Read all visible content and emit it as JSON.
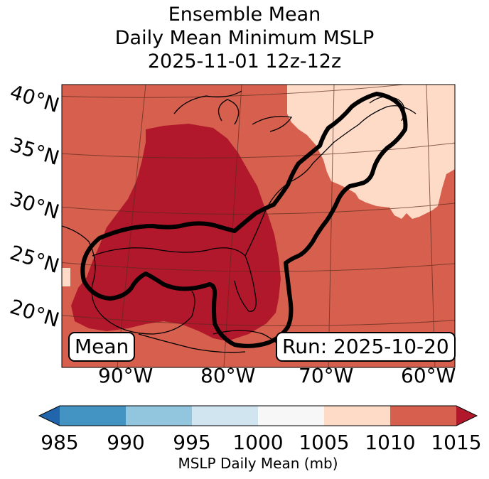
{
  "title": {
    "line1": "Ensemble Mean",
    "line2": "Daily Mean Minimum MSLP",
    "line3": "2025-11-01 12z-12z"
  },
  "map": {
    "lat_labels": [
      "40°N",
      "35°N",
      "30°N",
      "25°N",
      "20°N"
    ],
    "lon_labels": [
      "90°W",
      "80°W",
      "70°W",
      "60°W"
    ],
    "mean_box": "Mean",
    "run_box": "Run: 2025-10-20",
    "field_colors": {
      "1005_1010": "#fddbc7",
      "1010_1015": "#d6604d",
      "above_1015": "#b2182b"
    },
    "contour_color": "#000000"
  },
  "colorbar": {
    "ticks": [
      "985",
      "990",
      "995",
      "1000",
      "1005",
      "1010",
      "1015"
    ],
    "label": "MSLP Daily Mean (mb)",
    "colors": [
      "#2166ac",
      "#4393c3",
      "#92c5de",
      "#d1e5f0",
      "#f7f7f7",
      "#fddbc7",
      "#d6604d",
      "#b2182b"
    ]
  }
}
